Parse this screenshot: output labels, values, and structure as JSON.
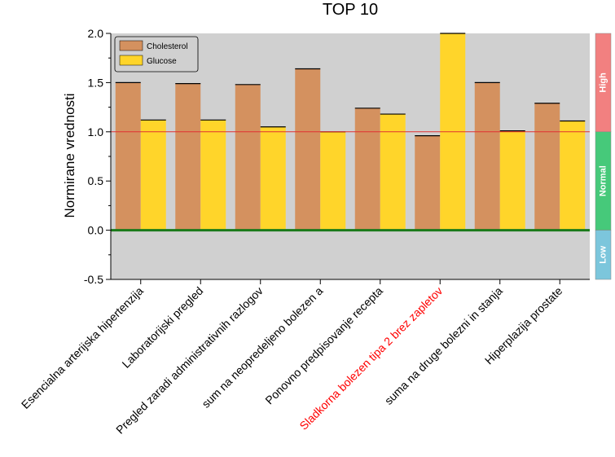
{
  "chart_data": {
    "type": "bar",
    "title": "TOP 10",
    "ylabel": "Normirane vrednosti",
    "xlabel": "",
    "ylim": [
      -0.5,
      2.0
    ],
    "yticks": [
      "-0.5",
      "0.0",
      "0.5",
      "1.0",
      "1.5",
      "2.0"
    ],
    "ytick_values": [
      -0.5,
      0.0,
      0.5,
      1.0,
      1.5,
      2.0
    ],
    "categories": [
      "Esencialna arterijska hipertenzija",
      "Laboratorijski pregled",
      "Pregled zaradi administrativnih razlogov",
      "sum na neopredeljeno bolezen a",
      "Ponovno predpisovanje recepta",
      "Sladkorna bolezen tipa 2 brez zapletov",
      "suma na druge bolezni in stanja",
      "Hiperplazija prostate"
    ],
    "category_colors": [
      "#000000",
      "#000000",
      "#000000",
      "#000000",
      "#000000",
      "#ff0000",
      "#000000",
      "#000000"
    ],
    "series": [
      {
        "name": "Cholesterol",
        "color": "#d4915f",
        "values": [
          1.5,
          1.49,
          1.48,
          1.64,
          1.24,
          0.96,
          1.5,
          1.29
        ]
      },
      {
        "name": "Glucose",
        "color": "#ffd52a",
        "values": [
          1.12,
          1.12,
          1.05,
          1.0,
          1.18,
          2.0,
          1.01,
          1.11
        ]
      }
    ],
    "reference_lines": [
      {
        "value": 1.0,
        "color": "#e03030"
      },
      {
        "value": 0.0,
        "color": "#1a7a1a"
      }
    ],
    "zones": [
      {
        "label": "High",
        "from": 1.0,
        "to": 2.0,
        "color": "#f28080"
      },
      {
        "label": "Normal",
        "from": 0.0,
        "to": 1.0,
        "color": "#46c97a"
      },
      {
        "label": "Low",
        "from": -0.5,
        "to": 0.0,
        "color": "#7cc6dc"
      }
    ],
    "plot_background": "#d0d0d0",
    "legend_position": "top-left",
    "grid": false
  }
}
